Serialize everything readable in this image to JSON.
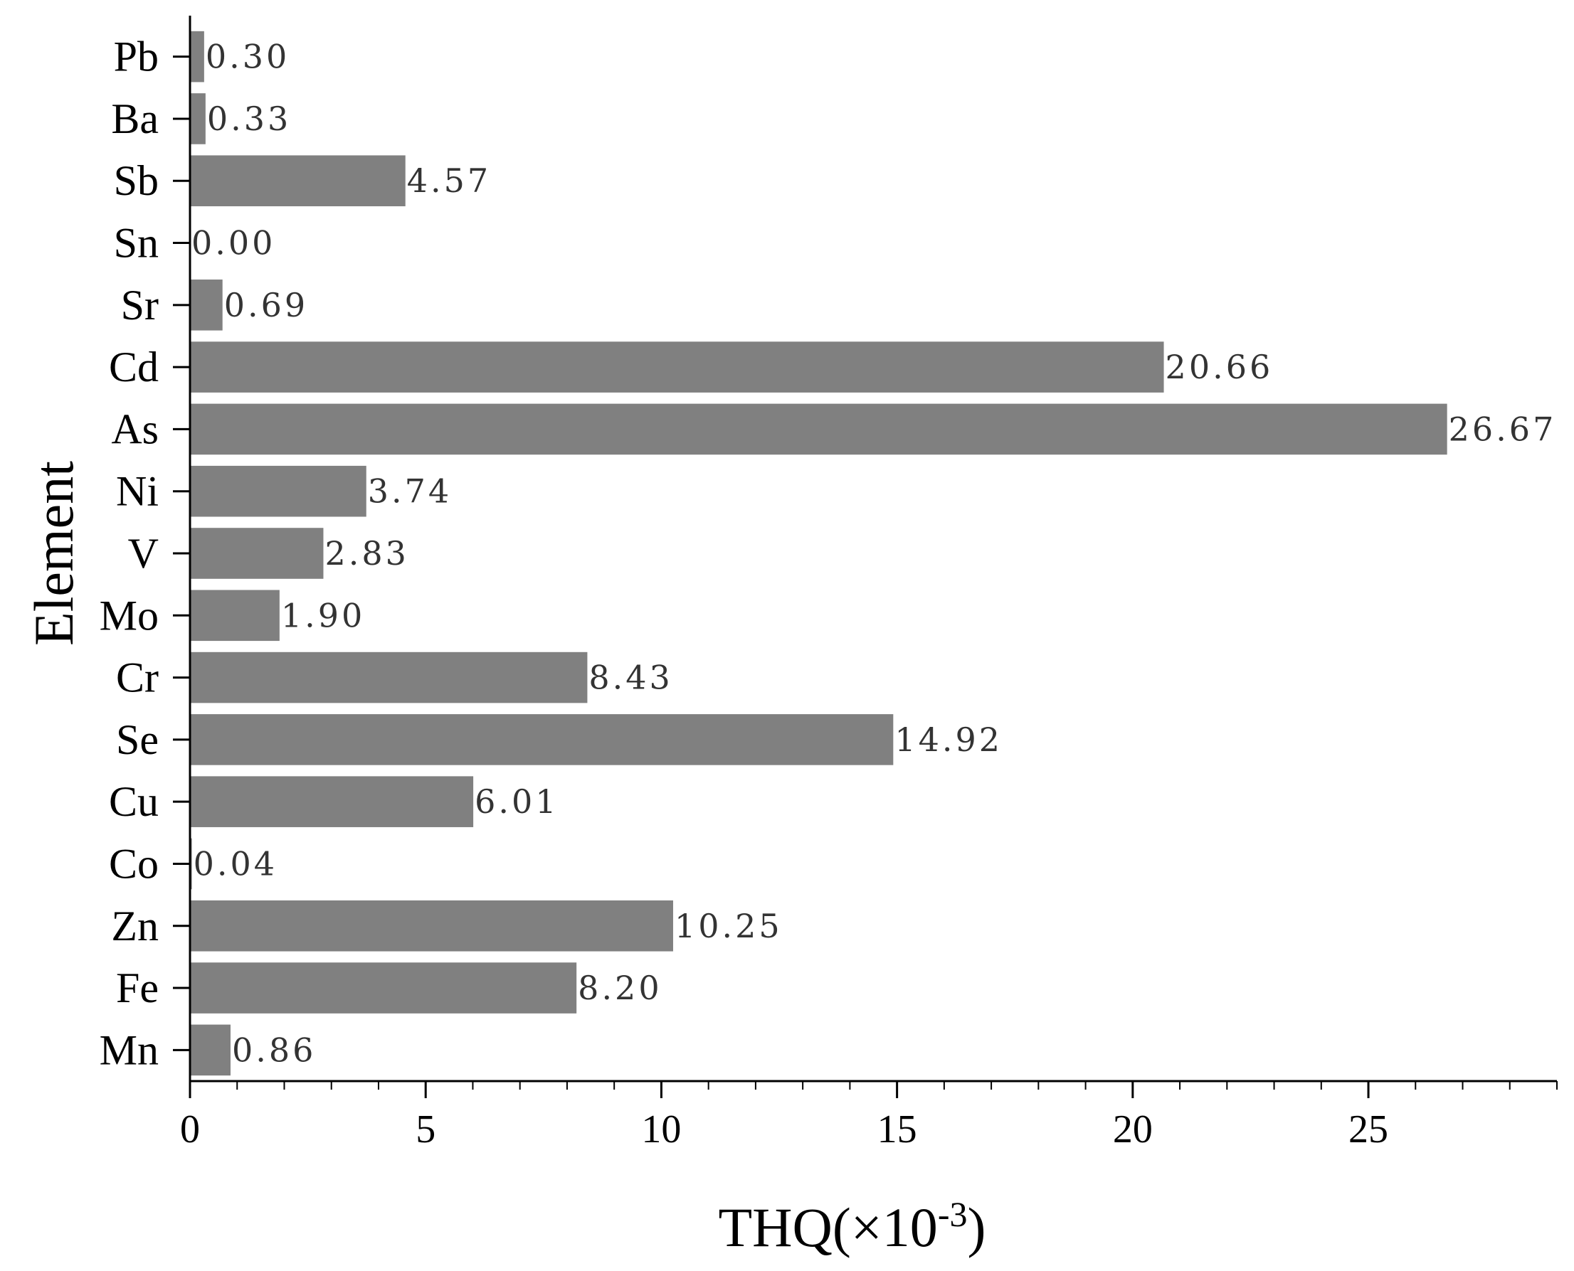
{
  "chart_data": {
    "type": "bar",
    "orientation": "horizontal",
    "categories": [
      "Pb",
      "Ba",
      "Sb",
      "Sn",
      "Sr",
      "Cd",
      "As",
      "Ni",
      "V",
      "Mo",
      "Cr",
      "Se",
      "Cu",
      "Co",
      "Zn",
      "Fe",
      "Mn"
    ],
    "values": [
      0.3,
      0.33,
      4.57,
      0.0,
      0.69,
      20.66,
      26.67,
      3.74,
      2.83,
      1.9,
      8.43,
      14.92,
      6.01,
      0.04,
      10.25,
      8.2,
      0.86
    ],
    "value_labels": [
      "0.30",
      "0.33",
      "4.57",
      "0.00",
      "0.69",
      "20.66",
      "26.67",
      "3.74",
      "2.83",
      "1.90",
      "8.43",
      "14.92",
      "6.01",
      "0.04",
      "10.25",
      "8.20",
      "0.86"
    ],
    "xlabel": "THQ(×10",
    "xlabel_exponent": "-3",
    "xlabel_close": ")",
    "ylabel": "Element",
    "xlim": [
      0,
      29
    ],
    "xticks": [
      0,
      5,
      10,
      15,
      20,
      25
    ],
    "xtick_labels": [
      "0",
      "5",
      "10",
      "15",
      "20",
      "25"
    ],
    "minor_tick_step": 1,
    "grid": false,
    "bar_color": "#808080"
  }
}
